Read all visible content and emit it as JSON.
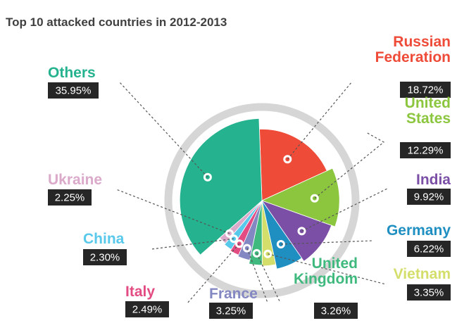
{
  "colors": {
    "others": "#25b28e",
    "russia": "#ee4b38",
    "usa": "#8cc63f",
    "india": "#7b4fa6",
    "germany": "#1f8fc2",
    "vietnam": "#d4de6a",
    "uk": "#3fb97e",
    "france": "#8488c2",
    "italy": "#e34c82",
    "china": "#58c9eb",
    "ukraine": "#dba9c9",
    "ring": "#d6d6d6",
    "label_bg": "#262626"
  },
  "chart_data": {
    "type": "pie",
    "title": "Top 10 attacked countries in 2012-2013",
    "unit": "%",
    "slices": [
      {
        "key": "russia",
        "name": "Russian Federation",
        "name_lines": [
          "Russian",
          "Federation"
        ],
        "value": 18.72,
        "label": "18.72%"
      },
      {
        "key": "usa",
        "name": "United States",
        "name_lines": [
          "United",
          "States"
        ],
        "value": 12.29,
        "label": "12.29%"
      },
      {
        "key": "india",
        "name": "India",
        "name_lines": [
          "India"
        ],
        "value": 9.92,
        "label": "9.92%"
      },
      {
        "key": "germany",
        "name": "Germany",
        "name_lines": [
          "Germany"
        ],
        "value": 6.22,
        "label": "6.22%"
      },
      {
        "key": "vietnam",
        "name": "Vietnam",
        "name_lines": [
          "Vietnam"
        ],
        "value": 3.35,
        "label": "3.35%"
      },
      {
        "key": "uk",
        "name": "United Kingdom",
        "name_lines": [
          "United",
          "Kingdom"
        ],
        "value": 3.26,
        "label": "3.26%"
      },
      {
        "key": "france",
        "name": "France",
        "name_lines": [
          "France"
        ],
        "value": 3.25,
        "label": "3.25%"
      },
      {
        "key": "italy",
        "name": "Italy",
        "name_lines": [
          "Italy"
        ],
        "value": 2.49,
        "label": "2.49%"
      },
      {
        "key": "china",
        "name": "China",
        "name_lines": [
          "China"
        ],
        "value": 2.3,
        "label": "2.30%"
      },
      {
        "key": "ukraine",
        "name": "Ukraine",
        "name_lines": [
          "Ukraine"
        ],
        "value": 2.25,
        "label": "2.25%"
      },
      {
        "key": "others",
        "name": "Others",
        "name_lines": [
          "Others"
        ],
        "value": 35.95,
        "label": "35.95%"
      }
    ]
  }
}
